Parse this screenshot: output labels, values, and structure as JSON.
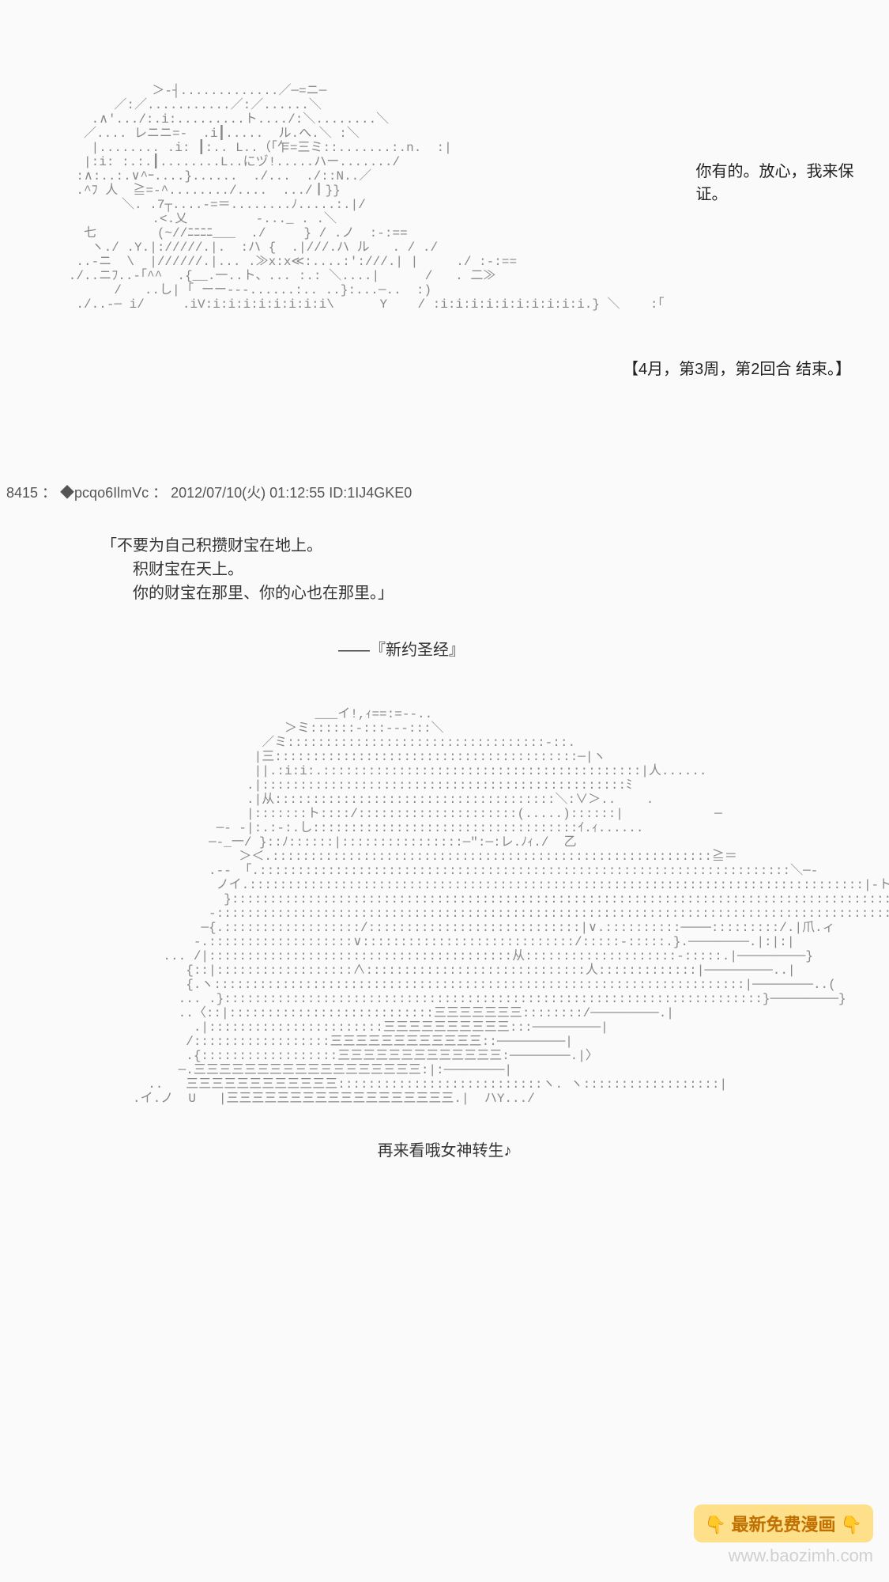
{
  "section1": {
    "ascii_art": "              ＞-┤.............／─=ニ─\n         ／:／...........／:／......＼\n      .∧'.../:.i:.........ト..../:＼........＼\n     ／.... レニニ=-  .i┃.....  ル.へ.＼ :＼\n      |........ .i: ┃:.. L..（｢乍=三ミ::.......:.n.  :|\n     |:i: :.:.┃........L..にヅ!.....ハー......./\n    :∧:..:.∨^ｰ....}......  ./...  ./::N..／\n    .^ﾌ 人  ≧=-^......../....  .../┃}}\n          ＼. .7┬....-=＝........ﾉ.....:.|/\n              .<.乂         -..._ . .＼\n     七        (~//ﾆﾆﾆﾆ___  ./     } / .ノ  :-:==\n      ヽ./ .Y.|://///.|.  :ハ {  .|///.ハ ル   . / ./\n    ..-ニ  \\  |//////.|... .≫x:x≪:....:':///.| |     ./ :-:==\n   ./..ニﾌ..-｢^^  .{__.一..ト、... :.: ＼....|      /   . 二≫\n         /   ..し| ｢ ーー---......:.. ..}:...─..  :)\n    ./..-─ i/     .iV:i:i:i:i:i:i:i:i\\      Y    / :i:i:i:i:i:i:i:i:i:i.} ＼    :｢",
    "dialogue": "你有的。放心，我来保证。"
  },
  "round_end": "【4月，第3周，第2回合 结束。】",
  "post_header": "8415 ： ◆pcqo6IlmVc ： 2012/07/10(火) 01:12:55 ID:1IJ4GKE0",
  "quote": {
    "line1": "「不要为自己积攒财宝在地上。",
    "line2": "　　积财宝在天上。",
    "line3": "　　你的财宝在那里、你的心也在那里。」",
    "source": "――『新约圣经』"
  },
  "section2": {
    "ascii_art": "                        ___イ!,ｨ==:=--..\n                    ＞ミ::::::-:::---:::＼\n                 ／ミ::::::::::::::::::::::::::::::::::-::.\n                |三::::::::::::::::::::::::::::::::::::::::─|ヽ\n                ||.:i:i:.::::::::::::::::::::::::::::::::::::::::::|人......\n               .|::::::::::::::::::::::::::::::::::::::::::::::::ﾐ\n               .|从:::::::::::::::::::::::::::::::::::::＼:∨＞..    .\n               |:::::::ト::::/:::::::::::::::::::::(.....)::::::|            ─\n           ─- -|:.:-:.し:::::::::::::::::::::::::::::::::::ｲ.ｨ......\n          ─-_一/ }::ﾉ::::::|::::::::::::::::─\":─:レ.ﾉｨ./  乙\n              ＞＜.::::::::::::::::::::::::::::::::::::::::::::::::::::::::::≧＝\n          .-- 「.::::::::::::::::::::::::::::::::::::::::::::::::::::::::::::::::::::::＼─-\n           ノイ.:::::::::::::::::::::::::::::::::::::::::::::::::::::::::::::::::::::::::::::::::|-ト....\n            }::::::::::::::::::::::::::::::::::::::::::::::::::::::::::::::::::::::::::::::::::::::::ト\n          -::::::::::::::::::::::::::::::::::::::::::::::::::::::::::::::::::::::::::::::::::::::::::::≧\n         ─{.::::::::::::::::::/::::::::::::::::::::::::::::|∨.::::::::::────:::::::::/.|爪.ィ\n        -.:::::::::::::::::::∨::::::::::::::::::::::::::::/:::::-:::::.}.────────.|:|:|\n    ... /|::::::::::::::::::::::::::::::::::::::::从::::::::::::::::::::-:::::.|─────────}\n       {::|::::::::::::::::::∧:::::::::::::::::::::::::::::人:::::::::::::|─────────..|\n       {.ヽ::::::::::::::::::::::::::::::::::::::::::::::::::::::::::::::::::::::|────────..(\n      ... .}:::::::::::::::::::::::::::::::::::::::::::::::::::::::::::::::::::::::}─────────}\n      ..〈::|:::::::::::::::::::::::::::三三三三三三三::::::::/─────────.|\n        .|:::::::::::::::::::::::三三三三三三三三三三:::─────────|\n       /::::::::::::::::::三三三三三三三三三三三三::─────────|\n       .{::::::::::::::::::三三三三三三三三三三三三三:────────.|〉\n      ─.三三三三三三三三三三三三三三三三三三:|:────────|\n  ..   三三三三三三三三三三三三:::::::::::::::::::::::::::ヽ. ヽ::::::::::::::::::|\n.イ.ノ  U   |三三三三三三三三三三三三三三三三三三.|  ハY.../",
    "bottom_line": "再来看哦女神转生♪"
  },
  "footer": {
    "hand_emoji": "👇",
    "badge_text": "最新免费漫画",
    "url": "www.baozimh.com"
  },
  "colors": {
    "background": "#fafafa",
    "text_primary": "#333333",
    "ascii_color": "#888888",
    "badge_bg": "#ffe08a",
    "badge_text": "#c07000",
    "url_color": "#d0d0d0"
  }
}
